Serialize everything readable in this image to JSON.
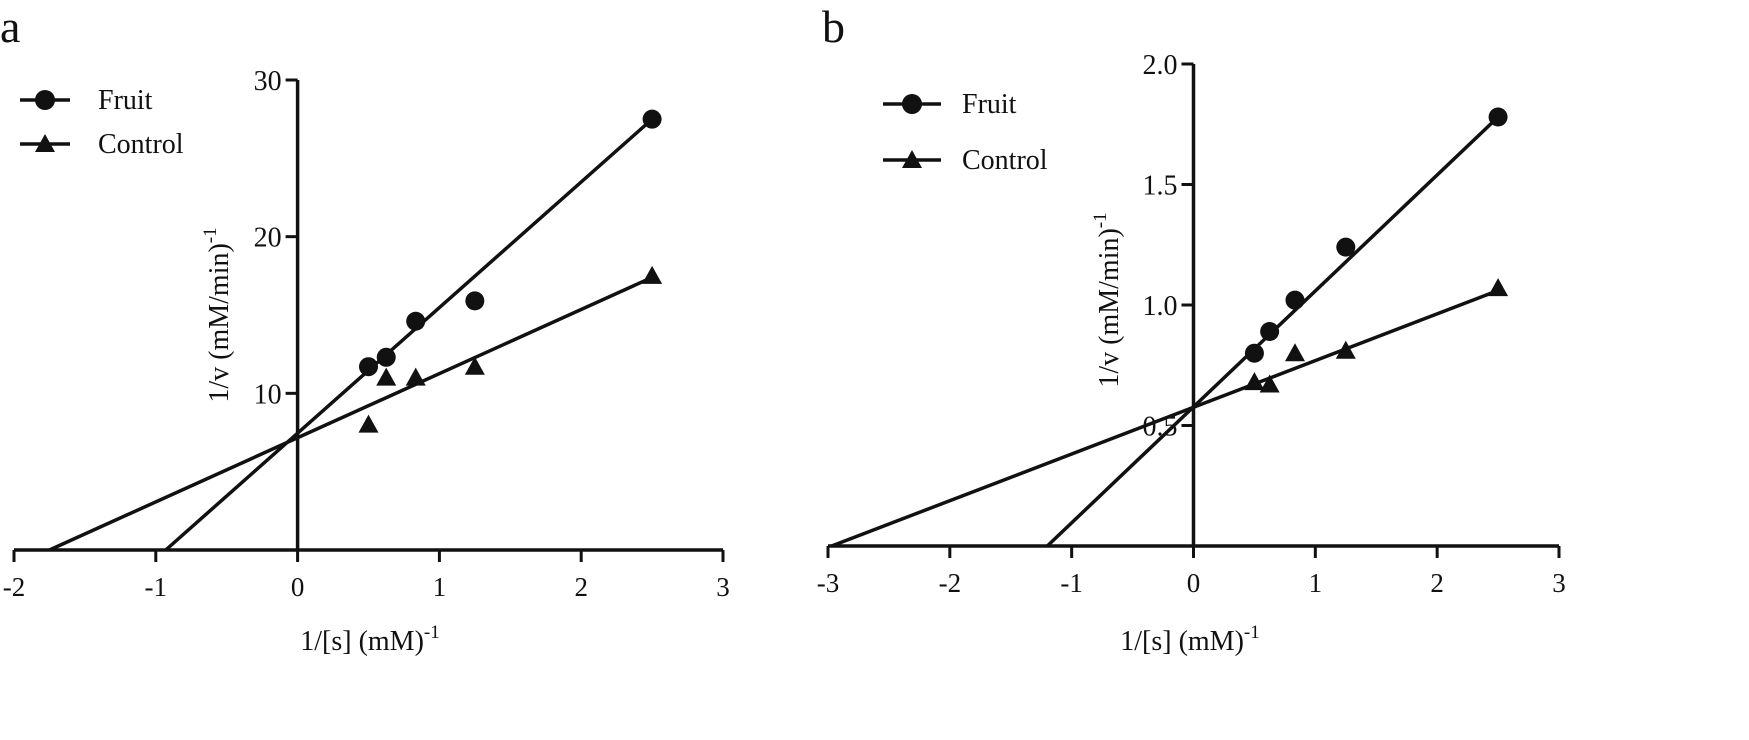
{
  "chart_data": [
    {
      "panel_label": "a",
      "type": "scatter",
      "xlabel": "1/[s] (mM)",
      "xlabel_sup": "-1",
      "ylabel": "1/v (mM/min)",
      "ylabel_sup": "-1",
      "xlim": [
        -2,
        3
      ],
      "ylim": [
        0,
        30
      ],
      "xticks": [
        -2,
        -1,
        0,
        1,
        2,
        3
      ],
      "yticks": [
        10,
        20,
        30
      ],
      "xtick_labels": [
        "-2",
        "-1",
        "0",
        "1",
        "2",
        "3"
      ],
      "ytick_labels": [
        "10",
        "20",
        "30"
      ],
      "legend_position": "top-left",
      "grid": false,
      "series": [
        {
          "name": "Fruit",
          "marker": "circle",
          "x": [
            0.5,
            0.625,
            0.833,
            1.25,
            2.5
          ],
          "y": [
            11.7,
            12.3,
            14.6,
            15.9,
            27.5
          ],
          "fit": {
            "x_start": -0.93,
            "x_end": 2.5,
            "y_start": 0,
            "y_end": 27.5
          }
        },
        {
          "name": "Control",
          "marker": "triangle",
          "x": [
            0.5,
            0.625,
            0.833,
            1.25,
            2.5
          ],
          "y": [
            8.0,
            11.0,
            11.0,
            11.7,
            17.5
          ],
          "fit": {
            "x_start": -1.75,
            "x_end": 2.5,
            "y_start": 0,
            "y_end": 17.4
          }
        }
      ]
    },
    {
      "panel_label": "b",
      "type": "scatter",
      "xlabel": "1/[s] (mM)",
      "xlabel_sup": "-1",
      "ylabel": "1/v (mM/min)",
      "ylabel_sup": "-1",
      "xlim": [
        -3,
        3
      ],
      "ylim": [
        0,
        2.0
      ],
      "xticks": [
        -3,
        -2,
        -1,
        0,
        1,
        2,
        3
      ],
      "yticks": [
        0.5,
        1.0,
        1.5,
        2.0
      ],
      "xtick_labels": [
        "-3",
        "-2",
        "-1",
        "0",
        "1",
        "2",
        "3"
      ],
      "ytick_labels": [
        "0.5",
        "1.0",
        "1.5",
        "2.0"
      ],
      "legend_position": "top-left",
      "grid": false,
      "series": [
        {
          "name": "Fruit",
          "marker": "circle",
          "x": [
            0.5,
            0.625,
            0.833,
            1.25,
            2.5
          ],
          "y": [
            0.8,
            0.89,
            1.02,
            1.24,
            1.78
          ],
          "fit": {
            "x_start": -1.2,
            "x_end": 2.5,
            "y_start": 0,
            "y_end": 1.78
          }
        },
        {
          "name": "Control",
          "marker": "triangle",
          "x": [
            0.5,
            0.625,
            0.833,
            1.25,
            2.5
          ],
          "y": [
            0.68,
            0.67,
            0.8,
            0.81,
            1.07
          ],
          "fit": {
            "x_start": -2.97,
            "x_end": 2.5,
            "y_start": 0,
            "y_end": 1.06
          }
        }
      ]
    }
  ]
}
